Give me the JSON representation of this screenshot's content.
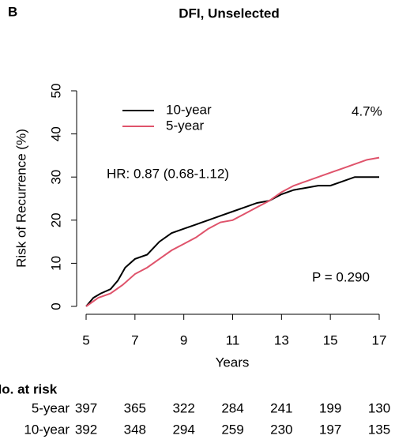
{
  "chart_data": {
    "type": "line",
    "panel_label": "B",
    "title": "DFI, Unselected",
    "x_label": "Years",
    "y_label": "Risk of Recurrence (%)",
    "xlim": [
      5,
      17
    ],
    "ylim": [
      0,
      50
    ],
    "xticks": [
      5,
      7,
      9,
      11,
      13,
      15,
      17
    ],
    "yticks": [
      0,
      10,
      20,
      30,
      40,
      50
    ],
    "legend": "top-left",
    "series": [
      {
        "name": "10-year",
        "color": "#000000",
        "x": [
          5,
          5.3,
          5.6,
          6,
          6.3,
          6.6,
          7,
          7.5,
          8,
          8.5,
          9,
          9.5,
          10,
          10.5,
          11,
          11.5,
          12,
          12.5,
          13,
          13.5,
          14,
          14.5,
          15,
          15.5,
          16,
          17
        ],
        "values": [
          0,
          2,
          3,
          4,
          6,
          9,
          11,
          12,
          15,
          17,
          18,
          19,
          20,
          21,
          22,
          23,
          24,
          24.5,
          26,
          27,
          27.5,
          28,
          28,
          29,
          30,
          30
        ]
      },
      {
        "name": "5-year",
        "color": "#df536b",
        "x": [
          5,
          5.5,
          6,
          6.5,
          7,
          7.5,
          8,
          8.5,
          9,
          9.5,
          10,
          10.5,
          11,
          11.5,
          12,
          12.5,
          13,
          13.5,
          14,
          14.5,
          15,
          15.5,
          16,
          16.5,
          17
        ],
        "values": [
          0,
          2,
          3,
          5,
          7.5,
          9,
          11,
          13,
          14.5,
          16,
          18,
          19.5,
          20,
          21.5,
          23,
          24.5,
          26.5,
          28,
          29,
          30,
          31,
          32,
          33,
          34,
          34.5
        ]
      }
    ],
    "annotations": [
      "4.7%",
      "HR: 0.87 (0.68-1.12)",
      "P = 0.290"
    ],
    "risk_table": {
      "title": "No. at risk",
      "rows": [
        {
          "label": "5-year",
          "values": [
            397,
            365,
            322,
            284,
            241,
            199,
            130
          ]
        },
        {
          "label": "10-year",
          "values": [
            392,
            348,
            294,
            259,
            230,
            197,
            135
          ]
        }
      ]
    }
  }
}
